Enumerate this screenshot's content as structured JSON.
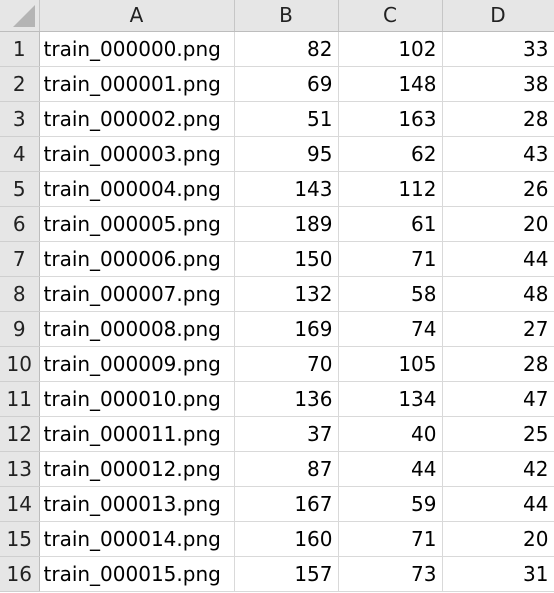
{
  "columns": [
    "A",
    "B",
    "C",
    "D"
  ],
  "rows": [
    {
      "num": "1",
      "a": "train_000000.png",
      "b": "82",
      "c": "102",
      "d": "33"
    },
    {
      "num": "2",
      "a": "train_000001.png",
      "b": "69",
      "c": "148",
      "d": "38"
    },
    {
      "num": "3",
      "a": "train_000002.png",
      "b": "51",
      "c": "163",
      "d": "28"
    },
    {
      "num": "4",
      "a": "train_000003.png",
      "b": "95",
      "c": "62",
      "d": "43"
    },
    {
      "num": "5",
      "a": "train_000004.png",
      "b": "143",
      "c": "112",
      "d": "26"
    },
    {
      "num": "6",
      "a": "train_000005.png",
      "b": "189",
      "c": "61",
      "d": "20"
    },
    {
      "num": "7",
      "a": "train_000006.png",
      "b": "150",
      "c": "71",
      "d": "44"
    },
    {
      "num": "8",
      "a": "train_000007.png",
      "b": "132",
      "c": "58",
      "d": "48"
    },
    {
      "num": "9",
      "a": "train_000008.png",
      "b": "169",
      "c": "74",
      "d": "27"
    },
    {
      "num": "10",
      "a": "train_000009.png",
      "b": "70",
      "c": "105",
      "d": "28"
    },
    {
      "num": "11",
      "a": "train_000010.png",
      "b": "136",
      "c": "134",
      "d": "47"
    },
    {
      "num": "12",
      "a": "train_000011.png",
      "b": "37",
      "c": "40",
      "d": "25"
    },
    {
      "num": "13",
      "a": "train_000012.png",
      "b": "87",
      "c": "44",
      "d": "42"
    },
    {
      "num": "14",
      "a": "train_000013.png",
      "b": "167",
      "c": "59",
      "d": "44"
    },
    {
      "num": "15",
      "a": "train_000014.png",
      "b": "160",
      "c": "71",
      "d": "20"
    },
    {
      "num": "16",
      "a": "train_000015.png",
      "b": "157",
      "c": "73",
      "d": "31"
    }
  ]
}
